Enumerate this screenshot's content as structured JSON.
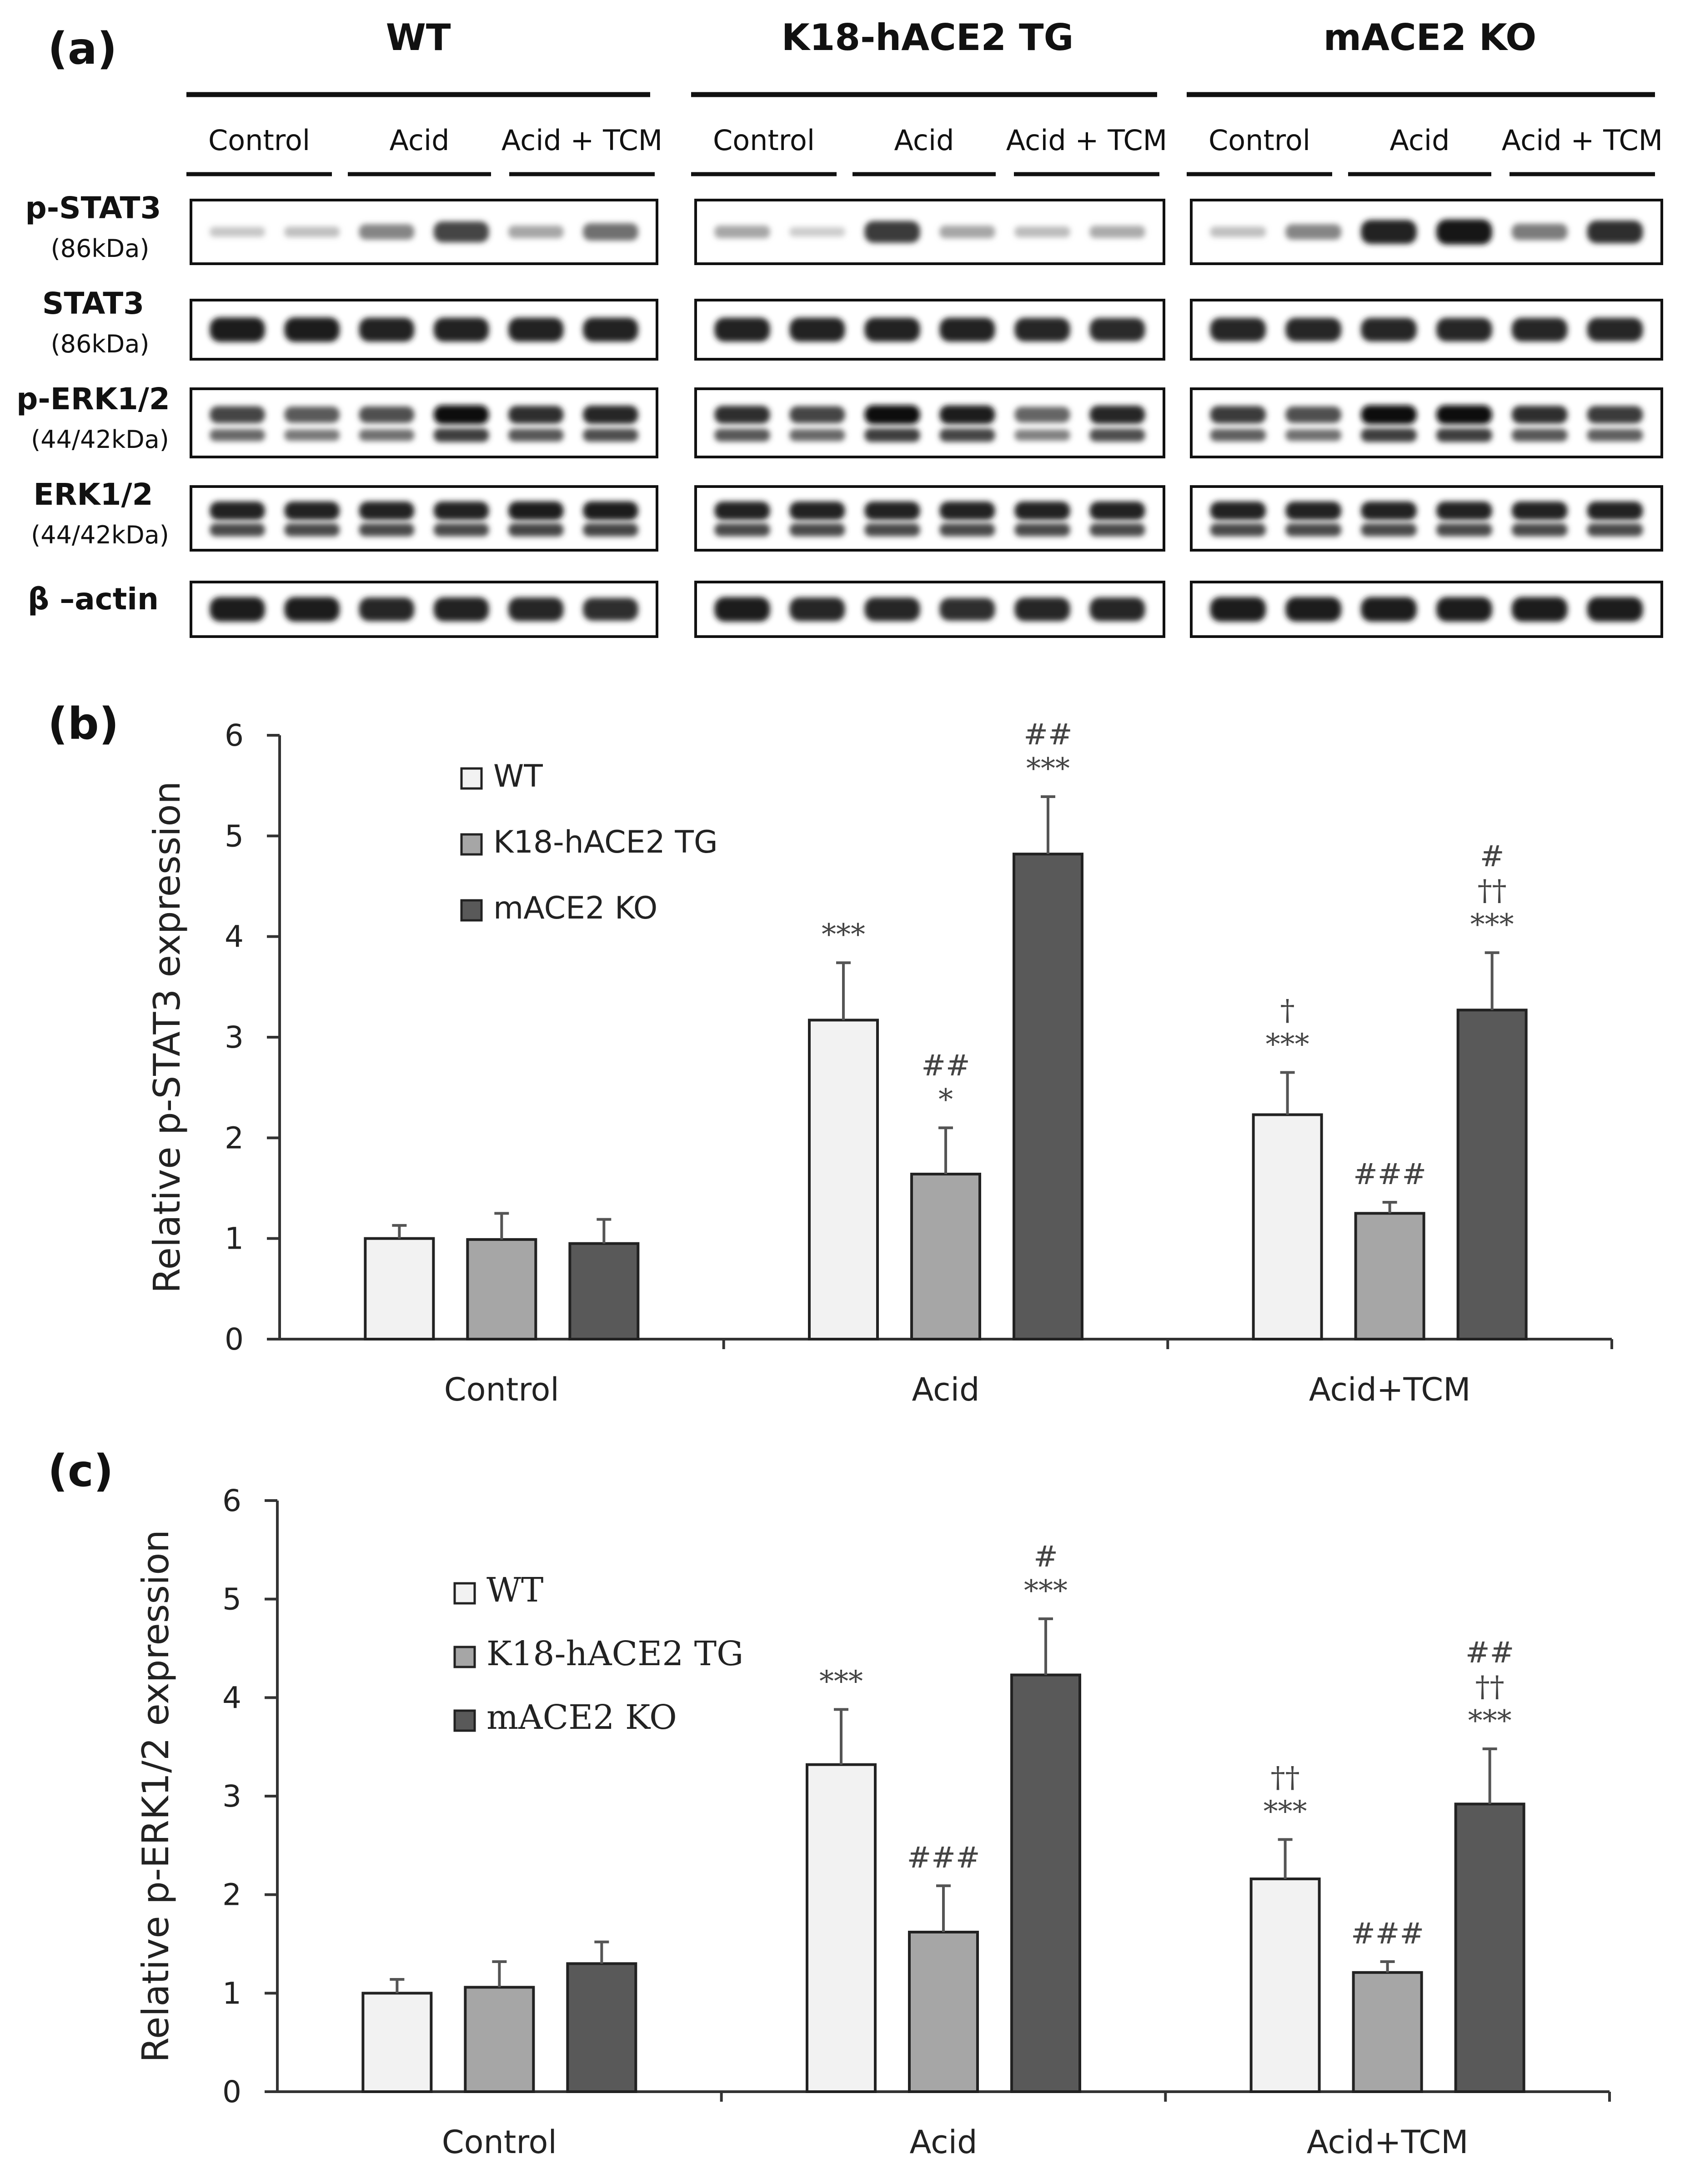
{
  "blot": {
    "panel_label": "(a)",
    "groups": [
      {
        "title": "WT",
        "conditions": [
          "Control",
          "Acid",
          "Acid + TCM"
        ]
      },
      {
        "title": "K18-hACE2 TG",
        "conditions": [
          "Control",
          "Acid",
          "Acid + TCM"
        ]
      },
      {
        "title": "mACE2 KO",
        "conditions": [
          "Control",
          "Acid",
          "Acid + TCM"
        ]
      }
    ],
    "rows": [
      {
        "name": "p-STAT3",
        "kda": "(86kDa)",
        "bands": "single",
        "intensity": [
          [
            0.15,
            0.18,
            0.45,
            0.75,
            0.3,
            0.55
          ],
          [
            0.3,
            0.12,
            0.8,
            0.3,
            0.2,
            0.28
          ],
          [
            0.18,
            0.45,
            0.92,
            0.98,
            0.5,
            0.85
          ]
        ]
      },
      {
        "name": "STAT3",
        "kda": "(86kDa)",
        "bands": "single",
        "intensity": [
          [
            0.95,
            0.95,
            0.92,
            0.92,
            0.92,
            0.92
          ],
          [
            0.92,
            0.92,
            0.92,
            0.92,
            0.9,
            0.88
          ],
          [
            0.9,
            0.9,
            0.9,
            0.9,
            0.9,
            0.9
          ]
        ]
      },
      {
        "name": "p-ERK1/2",
        "kda": "(44/42kDa)",
        "bands": "double",
        "intensity": [
          [
            0.75,
            0.65,
            0.7,
            1.0,
            0.85,
            0.9
          ],
          [
            0.85,
            0.75,
            1.0,
            0.95,
            0.6,
            0.9
          ],
          [
            0.8,
            0.7,
            1.0,
            1.0,
            0.85,
            0.8
          ]
        ]
      },
      {
        "name": "ERK1/2",
        "kda": "(44/42kDa)",
        "bands": "double",
        "intensity": [
          [
            0.92,
            0.92,
            0.92,
            0.92,
            0.95,
            0.95
          ],
          [
            0.92,
            0.92,
            0.92,
            0.92,
            0.92,
            0.92
          ],
          [
            0.92,
            0.92,
            0.92,
            0.92,
            0.92,
            0.92
          ]
        ]
      },
      {
        "name": "β –actin",
        "kda": "",
        "bands": "single",
        "intensity": [
          [
            0.95,
            0.95,
            0.9,
            0.92,
            0.9,
            0.85
          ],
          [
            0.95,
            0.9,
            0.9,
            0.85,
            0.9,
            0.9
          ],
          [
            0.95,
            0.95,
            0.95,
            0.95,
            0.95,
            0.95
          ]
        ]
      }
    ]
  },
  "chart_data": [
    {
      "panel_label": "(b)",
      "type": "bar",
      "categories": [
        "Control",
        "Acid",
        "Acid+TCM"
      ],
      "series": [
        {
          "name": "WT",
          "color": "#f2f2f2",
          "values": [
            1.0,
            3.17,
            2.23
          ],
          "errors": [
            0.13,
            0.57,
            0.42
          ]
        },
        {
          "name": "K18-hACE2 TG",
          "color": "#a6a6a6",
          "values": [
            0.99,
            1.64,
            1.25
          ],
          "errors": [
            0.26,
            0.46,
            0.11
          ]
        },
        {
          "name": "mACE2 KO",
          "color": "#595959",
          "values": [
            0.95,
            4.82,
            3.27
          ],
          "errors": [
            0.24,
            0.57,
            0.57
          ]
        }
      ],
      "annotations": [
        [
          [],
          [],
          []
        ],
        [
          [
            "***"
          ],
          [
            "*",
            "##"
          ],
          [
            "***",
            "##"
          ]
        ],
        [
          [
            "***",
            "†"
          ],
          [
            "###"
          ],
          [
            "***",
            "††",
            "#"
          ]
        ]
      ],
      "ylabel": "Relative p-STAT3 expression",
      "xlabel": "",
      "ylim": [
        0,
        6
      ],
      "yticks": [
        0,
        1,
        2,
        3,
        4,
        5,
        6
      ],
      "legend_position": "upper-left",
      "grid": false
    },
    {
      "panel_label": "(c)",
      "type": "bar",
      "categories": [
        "Control",
        "Acid",
        "Acid+TCM"
      ],
      "series": [
        {
          "name": "WT",
          "color": "#f2f2f2",
          "values": [
            1.0,
            3.32,
            2.16
          ],
          "errors": [
            0.14,
            0.56,
            0.4
          ]
        },
        {
          "name": "K18-hACE2 TG",
          "color": "#a6a6a6",
          "values": [
            1.06,
            1.62,
            1.21
          ],
          "errors": [
            0.26,
            0.47,
            0.11
          ]
        },
        {
          "name": "mACE2 KO",
          "color": "#595959",
          "values": [
            1.3,
            4.23,
            2.92
          ],
          "errors": [
            0.22,
            0.57,
            0.56
          ]
        }
      ],
      "annotations": [
        [
          [],
          [],
          []
        ],
        [
          [
            "***"
          ],
          [
            "###"
          ],
          [
            "***",
            "#"
          ]
        ],
        [
          [
            "***",
            "††"
          ],
          [
            "###"
          ],
          [
            "***",
            "††",
            "##"
          ]
        ]
      ],
      "ylabel": "Relative p-ERK1/2 expression",
      "xlabel": "",
      "ylim": [
        0,
        6
      ],
      "yticks": [
        0,
        1,
        2,
        3,
        4,
        5,
        6
      ],
      "legend_position": "upper-left",
      "grid": false
    }
  ]
}
